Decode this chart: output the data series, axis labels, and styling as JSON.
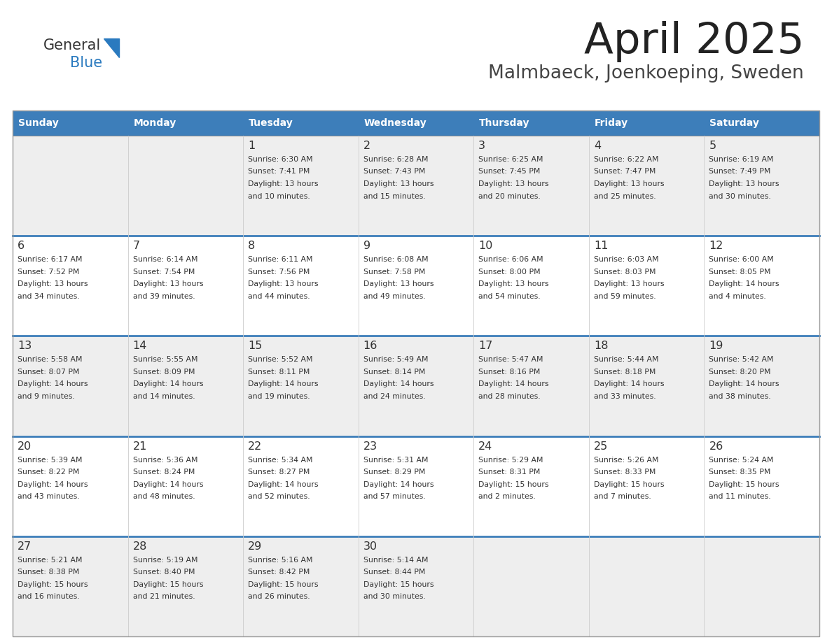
{
  "title": "April 2025",
  "subtitle": "Malmbaeck, Joenkoeping, Sweden",
  "days_of_week": [
    "Sunday",
    "Monday",
    "Tuesday",
    "Wednesday",
    "Thursday",
    "Friday",
    "Saturday"
  ],
  "header_bg": "#3d7eba",
  "header_text": "#FFFFFF",
  "row_bg_even": "#eeeeee",
  "row_bg_odd": "#FFFFFF",
  "day_num_color": "#333333",
  "cell_text_color": "#333333",
  "divider_color": "#3d7eba",
  "logo_general_color": "#333333",
  "logo_blue_color": "#2a7abf",
  "logo_tri_color": "#2a7abf",
  "weeks": [
    [
      {
        "day": null,
        "info": null
      },
      {
        "day": null,
        "info": null
      },
      {
        "day": 1,
        "info": {
          "sunrise": "6:30 AM",
          "sunset": "7:41 PM",
          "daylight_h": "13 hours",
          "daylight_m": "and 10 minutes."
        }
      },
      {
        "day": 2,
        "info": {
          "sunrise": "6:28 AM",
          "sunset": "7:43 PM",
          "daylight_h": "13 hours",
          "daylight_m": "and 15 minutes."
        }
      },
      {
        "day": 3,
        "info": {
          "sunrise": "6:25 AM",
          "sunset": "7:45 PM",
          "daylight_h": "13 hours",
          "daylight_m": "and 20 minutes."
        }
      },
      {
        "day": 4,
        "info": {
          "sunrise": "6:22 AM",
          "sunset": "7:47 PM",
          "daylight_h": "13 hours",
          "daylight_m": "and 25 minutes."
        }
      },
      {
        "day": 5,
        "info": {
          "sunrise": "6:19 AM",
          "sunset": "7:49 PM",
          "daylight_h": "13 hours",
          "daylight_m": "and 30 minutes."
        }
      }
    ],
    [
      {
        "day": 6,
        "info": {
          "sunrise": "6:17 AM",
          "sunset": "7:52 PM",
          "daylight_h": "13 hours",
          "daylight_m": "and 34 minutes."
        }
      },
      {
        "day": 7,
        "info": {
          "sunrise": "6:14 AM",
          "sunset": "7:54 PM",
          "daylight_h": "13 hours",
          "daylight_m": "and 39 minutes."
        }
      },
      {
        "day": 8,
        "info": {
          "sunrise": "6:11 AM",
          "sunset": "7:56 PM",
          "daylight_h": "13 hours",
          "daylight_m": "and 44 minutes."
        }
      },
      {
        "day": 9,
        "info": {
          "sunrise": "6:08 AM",
          "sunset": "7:58 PM",
          "daylight_h": "13 hours",
          "daylight_m": "and 49 minutes."
        }
      },
      {
        "day": 10,
        "info": {
          "sunrise": "6:06 AM",
          "sunset": "8:00 PM",
          "daylight_h": "13 hours",
          "daylight_m": "and 54 minutes."
        }
      },
      {
        "day": 11,
        "info": {
          "sunrise": "6:03 AM",
          "sunset": "8:03 PM",
          "daylight_h": "13 hours",
          "daylight_m": "and 59 minutes."
        }
      },
      {
        "day": 12,
        "info": {
          "sunrise": "6:00 AM",
          "sunset": "8:05 PM",
          "daylight_h": "14 hours",
          "daylight_m": "and 4 minutes."
        }
      }
    ],
    [
      {
        "day": 13,
        "info": {
          "sunrise": "5:58 AM",
          "sunset": "8:07 PM",
          "daylight_h": "14 hours",
          "daylight_m": "and 9 minutes."
        }
      },
      {
        "day": 14,
        "info": {
          "sunrise": "5:55 AM",
          "sunset": "8:09 PM",
          "daylight_h": "14 hours",
          "daylight_m": "and 14 minutes."
        }
      },
      {
        "day": 15,
        "info": {
          "sunrise": "5:52 AM",
          "sunset": "8:11 PM",
          "daylight_h": "14 hours",
          "daylight_m": "and 19 minutes."
        }
      },
      {
        "day": 16,
        "info": {
          "sunrise": "5:49 AM",
          "sunset": "8:14 PM",
          "daylight_h": "14 hours",
          "daylight_m": "and 24 minutes."
        }
      },
      {
        "day": 17,
        "info": {
          "sunrise": "5:47 AM",
          "sunset": "8:16 PM",
          "daylight_h": "14 hours",
          "daylight_m": "and 28 minutes."
        }
      },
      {
        "day": 18,
        "info": {
          "sunrise": "5:44 AM",
          "sunset": "8:18 PM",
          "daylight_h": "14 hours",
          "daylight_m": "and 33 minutes."
        }
      },
      {
        "day": 19,
        "info": {
          "sunrise": "5:42 AM",
          "sunset": "8:20 PM",
          "daylight_h": "14 hours",
          "daylight_m": "and 38 minutes."
        }
      }
    ],
    [
      {
        "day": 20,
        "info": {
          "sunrise": "5:39 AM",
          "sunset": "8:22 PM",
          "daylight_h": "14 hours",
          "daylight_m": "and 43 minutes."
        }
      },
      {
        "day": 21,
        "info": {
          "sunrise": "5:36 AM",
          "sunset": "8:24 PM",
          "daylight_h": "14 hours",
          "daylight_m": "and 48 minutes."
        }
      },
      {
        "day": 22,
        "info": {
          "sunrise": "5:34 AM",
          "sunset": "8:27 PM",
          "daylight_h": "14 hours",
          "daylight_m": "and 52 minutes."
        }
      },
      {
        "day": 23,
        "info": {
          "sunrise": "5:31 AM",
          "sunset": "8:29 PM",
          "daylight_h": "14 hours",
          "daylight_m": "and 57 minutes."
        }
      },
      {
        "day": 24,
        "info": {
          "sunrise": "5:29 AM",
          "sunset": "8:31 PM",
          "daylight_h": "15 hours",
          "daylight_m": "and 2 minutes."
        }
      },
      {
        "day": 25,
        "info": {
          "sunrise": "5:26 AM",
          "sunset": "8:33 PM",
          "daylight_h": "15 hours",
          "daylight_m": "and 7 minutes."
        }
      },
      {
        "day": 26,
        "info": {
          "sunrise": "5:24 AM",
          "sunset": "8:35 PM",
          "daylight_h": "15 hours",
          "daylight_m": "and 11 minutes."
        }
      }
    ],
    [
      {
        "day": 27,
        "info": {
          "sunrise": "5:21 AM",
          "sunset": "8:38 PM",
          "daylight_h": "15 hours",
          "daylight_m": "and 16 minutes."
        }
      },
      {
        "day": 28,
        "info": {
          "sunrise": "5:19 AM",
          "sunset": "8:40 PM",
          "daylight_h": "15 hours",
          "daylight_m": "and 21 minutes."
        }
      },
      {
        "day": 29,
        "info": {
          "sunrise": "5:16 AM",
          "sunset": "8:42 PM",
          "daylight_h": "15 hours",
          "daylight_m": "and 26 minutes."
        }
      },
      {
        "day": 30,
        "info": {
          "sunrise": "5:14 AM",
          "sunset": "8:44 PM",
          "daylight_h": "15 hours",
          "daylight_m": "and 30 minutes."
        }
      },
      {
        "day": null,
        "info": null
      },
      {
        "day": null,
        "info": null
      },
      {
        "day": null,
        "info": null
      }
    ]
  ]
}
